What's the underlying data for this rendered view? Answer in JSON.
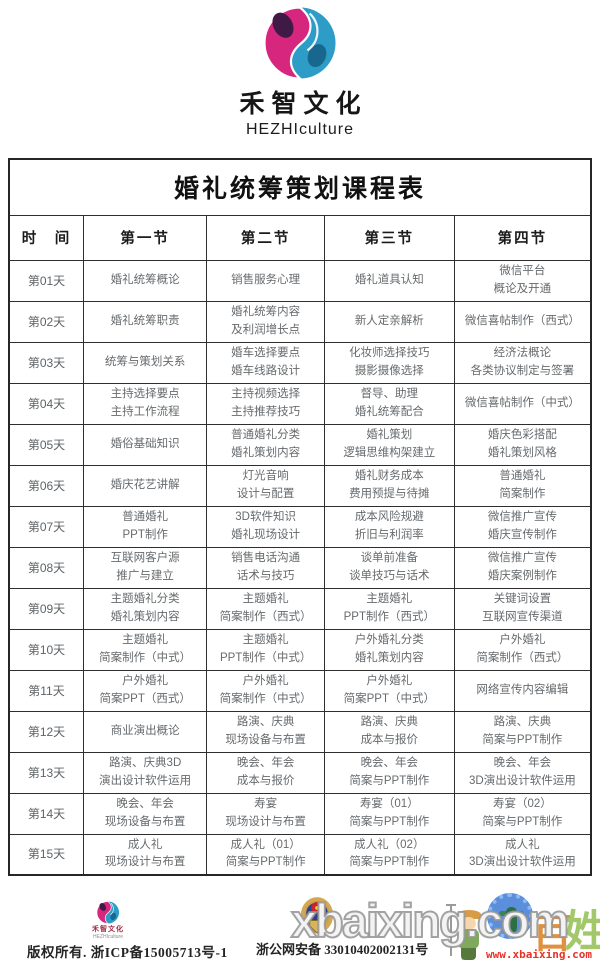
{
  "brand": {
    "name_cn": "禾智文化",
    "name_en": "HEZHIculture",
    "logo_colors": {
      "magenta": "#d6267e",
      "dark_purple": "#3f1a47",
      "blue": "#2d9cc7",
      "dark_blue": "#17678f"
    }
  },
  "table": {
    "title": "婚礼统筹策划课程表",
    "columns": [
      "时　间",
      "第一节",
      "第二节",
      "第三节",
      "第四节"
    ],
    "rows": [
      {
        "day": "第01天",
        "cells": [
          "婚礼统筹概论",
          "销售服务心理",
          "婚礼道具认知",
          "微信平台\n概论及开通"
        ]
      },
      {
        "day": "第02天",
        "cells": [
          "婚礼统筹职责",
          "婚礼统筹内容\n及利润增长点",
          "新人定亲解析",
          "微信喜帖制作（西式）"
        ]
      },
      {
        "day": "第03天",
        "cells": [
          "统筹与策划关系",
          "婚车选择要点\n婚车线路设计",
          "化妆师选择技巧\n摄影摄像选择",
          "经济法概论\n各类协议制定与签署"
        ]
      },
      {
        "day": "第04天",
        "cells": [
          "主持选择要点\n主持工作流程",
          "主持视频选择\n主持推荐技巧",
          "督导、助理\n婚礼统筹配合",
          "微信喜帖制作（中式）"
        ]
      },
      {
        "day": "第05天",
        "cells": [
          "婚俗基础知识",
          "普通婚礼分类\n婚礼策划内容",
          "婚礼策划\n逻辑思维构架建立",
          "婚庆色彩搭配\n婚礼策划风格"
        ]
      },
      {
        "day": "第06天",
        "cells": [
          "婚庆花艺讲解",
          "灯光音响\n设计与配置",
          "婚礼财务成本\n费用预提与待摊",
          "普通婚礼\n简案制作"
        ]
      },
      {
        "day": "第07天",
        "cells": [
          "普通婚礼\nPPT制作",
          "3D软件知识\n婚礼现场设计",
          "成本风险规避\n折旧与利润率",
          "微信推广宣传\n婚庆宣传制作"
        ]
      },
      {
        "day": "第08天",
        "cells": [
          "互联网客户源\n推广与建立",
          "销售电话沟通\n话术与技巧",
          "谈单前准备\n谈单技巧与话术",
          "微信推广宣传\n婚庆案例制作"
        ]
      },
      {
        "day": "第09天",
        "cells": [
          "主题婚礼分类\n婚礼策划内容",
          "主题婚礼\n简案制作（西式）",
          "主题婚礼\nPPT制作（西式）",
          "关键词设置\n互联网宣传渠道"
        ]
      },
      {
        "day": "第10天",
        "cells": [
          "主题婚礼\n简案制作（中式）",
          "主题婚礼\nPPT制作（中式）",
          "户外婚礼分类\n婚礼策划内容",
          "户外婚礼\n简案制作（西式）"
        ]
      },
      {
        "day": "第11天",
        "cells": [
          "户外婚礼\n简案PPT（西式）",
          "户外婚礼\n简案制作（中式）",
          "户外婚礼\n简案PPT（中式）",
          "网络宣传内容编辑"
        ]
      },
      {
        "day": "第12天",
        "cells": [
          "商业演出概论",
          "路演、庆典\n现场设备与布置",
          "路演、庆典\n成本与报价",
          "路演、庆典\n简案与PPT制作"
        ]
      },
      {
        "day": "第13天",
        "cells": [
          "路演、庆典3D\n演出设计软件运用",
          "晚会、年会\n成本与报价",
          "晚会、年会\n简案与PPT制作",
          "晚会、年会\n3D演出设计软件运用"
        ]
      },
      {
        "day": "第14天",
        "cells": [
          "晚会、年会\n现场设备与布置",
          "寿宴\n现场设计与布置",
          "寿宴（01）\n简案与PPT制作",
          "寿宴（02）\n简案与PPT制作"
        ]
      },
      {
        "day": "第15天",
        "cells": [
          "成人礼\n现场设计与布置",
          "成人礼（01）\n简案与PPT制作",
          "成人礼（02）\n简案与PPT制作",
          "成人礼\n3D演出设计软件运用"
        ]
      }
    ]
  },
  "footer": {
    "brand_cn": "禾智文化",
    "brand_en": "HEZHIculture",
    "copyright": "版权所有. 浙ICP备15005713号-1",
    "police_badge_icon": "china-police-badge-icon",
    "beian": "浙公网安备 33010402002131号",
    "partial_text": "日",
    "mascot_chars": {
      "bai": "百",
      "xing": "姓"
    },
    "watermark_url": "www.xbaixing.com"
  },
  "watermark": {
    "text": "xbaixing.com"
  }
}
